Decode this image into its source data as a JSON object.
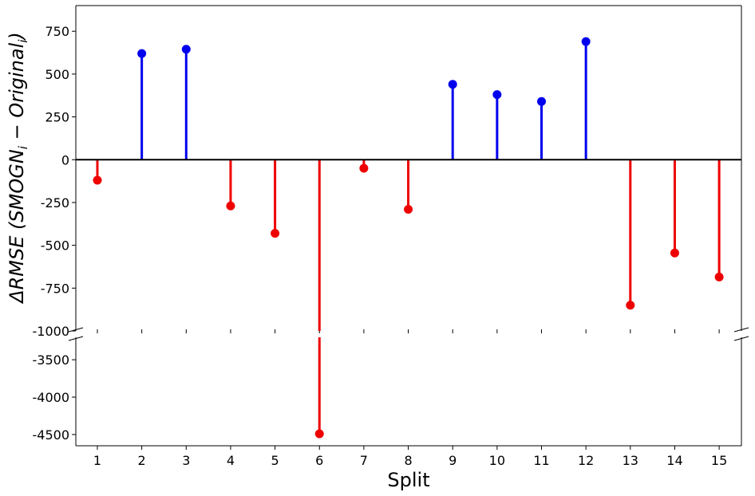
{
  "chart_data": {
    "type": "stem",
    "xlabel": "Split",
    "ylabel_prefix": "ΔRMSE (SMOGN",
    "ylabel_sub1": "i",
    "ylabel_mid": " − Original",
    "ylabel_sub2": "i",
    "ylabel_suffix": ")",
    "x": [
      1,
      2,
      3,
      4,
      5,
      6,
      7,
      8,
      9,
      10,
      11,
      12,
      13,
      14,
      15
    ],
    "values": [
      -120,
      620,
      645,
      -270,
      -430,
      -4490,
      -50,
      -290,
      440,
      380,
      340,
      690,
      -850,
      -545,
      -685
    ],
    "x_ticks": [
      "1",
      "2",
      "3",
      "4",
      "5",
      "6",
      "7",
      "8",
      "9",
      "10",
      "11",
      "12",
      "13",
      "14",
      "15"
    ],
    "upper_axis": {
      "ylim": [
        -1000,
        900
      ],
      "ticks": [
        750,
        500,
        250,
        0,
        -250,
        -500,
        -750,
        -1000
      ],
      "tick_labels": [
        "750",
        "500",
        "250",
        "0",
        "-250",
        "-500",
        "-750",
        "-1000"
      ]
    },
    "lower_axis": {
      "ylim": [
        -4650,
        -3200
      ],
      "ticks": [
        -3500,
        -4000,
        -4500
      ],
      "tick_labels": [
        "-3500",
        "-4000",
        "-4500"
      ]
    },
    "positive_color": "#0000ee",
    "negative_color": "#ee0000",
    "baseline_color": "#000000",
    "broken_axis": true,
    "grid": false
  }
}
